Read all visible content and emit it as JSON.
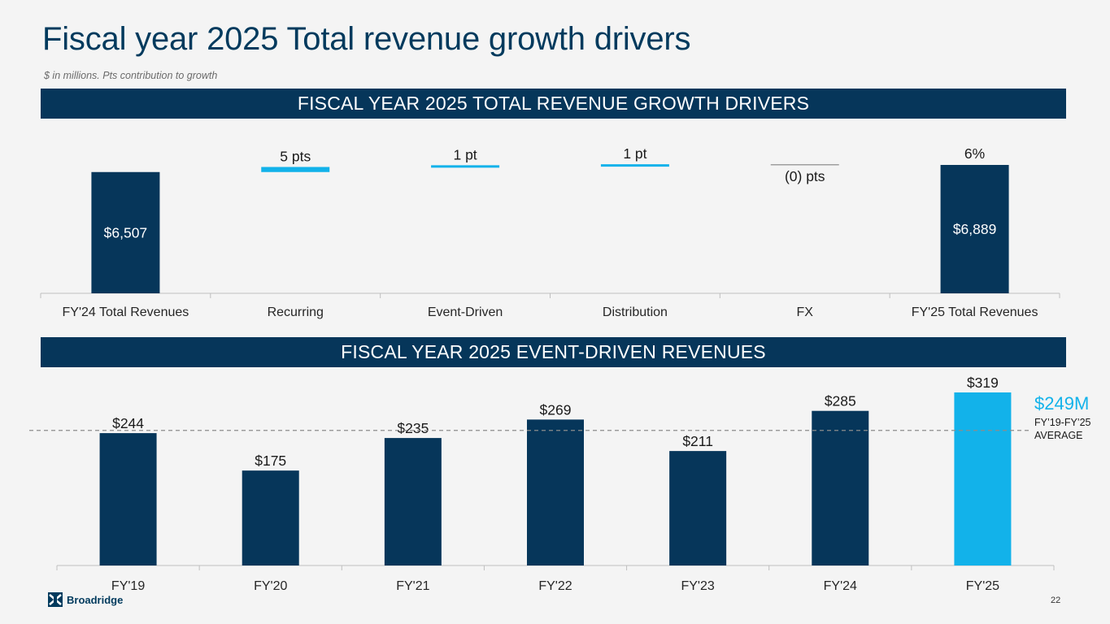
{
  "page": {
    "title": "Fiscal year 2025 Total revenue growth drivers",
    "subtitle": "$ in millions. Pts contribution to growth",
    "page_number": "22",
    "logo_text": "Broadridge"
  },
  "banners": {
    "top": "FISCAL YEAR 2025 TOTAL REVENUE GROWTH DRIVERS",
    "bottom": "FISCAL YEAR 2025 EVENT-DRIVEN REVENUES"
  },
  "average": {
    "value_label": "$249M",
    "label_line1": "FY’19-FY’25",
    "label_line2": "AVERAGE",
    "value": 249
  },
  "colors": {
    "navy": "#06365a",
    "light_blue": "#12b2ea",
    "gray": "#9e9e9e",
    "axis": "#bfbfbf",
    "text": "#1a1a1a"
  },
  "chart_data": [
    {
      "type": "bar",
      "subtype": "waterfall",
      "title": "FISCAL YEAR 2025 TOTAL REVENUE GROWTH DRIVERS",
      "unit": "$ in millions",
      "categories": [
        "FY'24 Total Revenues",
        "Recurring",
        "Event-Driven",
        "Distribution",
        "FX",
        "FY'25 Total Revenues"
      ],
      "values": [
        6507,
        5,
        1,
        1,
        0,
        6889
      ],
      "bar_labels": [
        "$6,507",
        "",
        "",
        "",
        "",
        "$6,889"
      ],
      "top_labels": [
        "",
        "5 pts",
        "1 pt",
        "1 pt",
        "(0) pts",
        "6%"
      ],
      "kinds": [
        "total",
        "delta",
        "delta",
        "delta",
        "delta",
        "total"
      ],
      "value_units": [
        "$M",
        "pts",
        "pts",
        "pts",
        "pts",
        "$M"
      ],
      "grid": false
    },
    {
      "type": "bar",
      "title": "FISCAL YEAR 2025 EVENT-DRIVEN REVENUES",
      "unit": "$ in millions",
      "categories": [
        "FY'19",
        "FY'20",
        "FY'21",
        "FY'22",
        "FY'23",
        "FY'24",
        "FY'25"
      ],
      "values": [
        244,
        175,
        235,
        269,
        211,
        285,
        319
      ],
      "labels": [
        "$244",
        "$175",
        "$235",
        "$269",
        "$211",
        "$285",
        "$319"
      ],
      "highlight_index": 6,
      "reference_line": {
        "value": 249,
        "style": "dashed"
      },
      "ylim": [
        0,
        319
      ],
      "grid": false
    }
  ]
}
